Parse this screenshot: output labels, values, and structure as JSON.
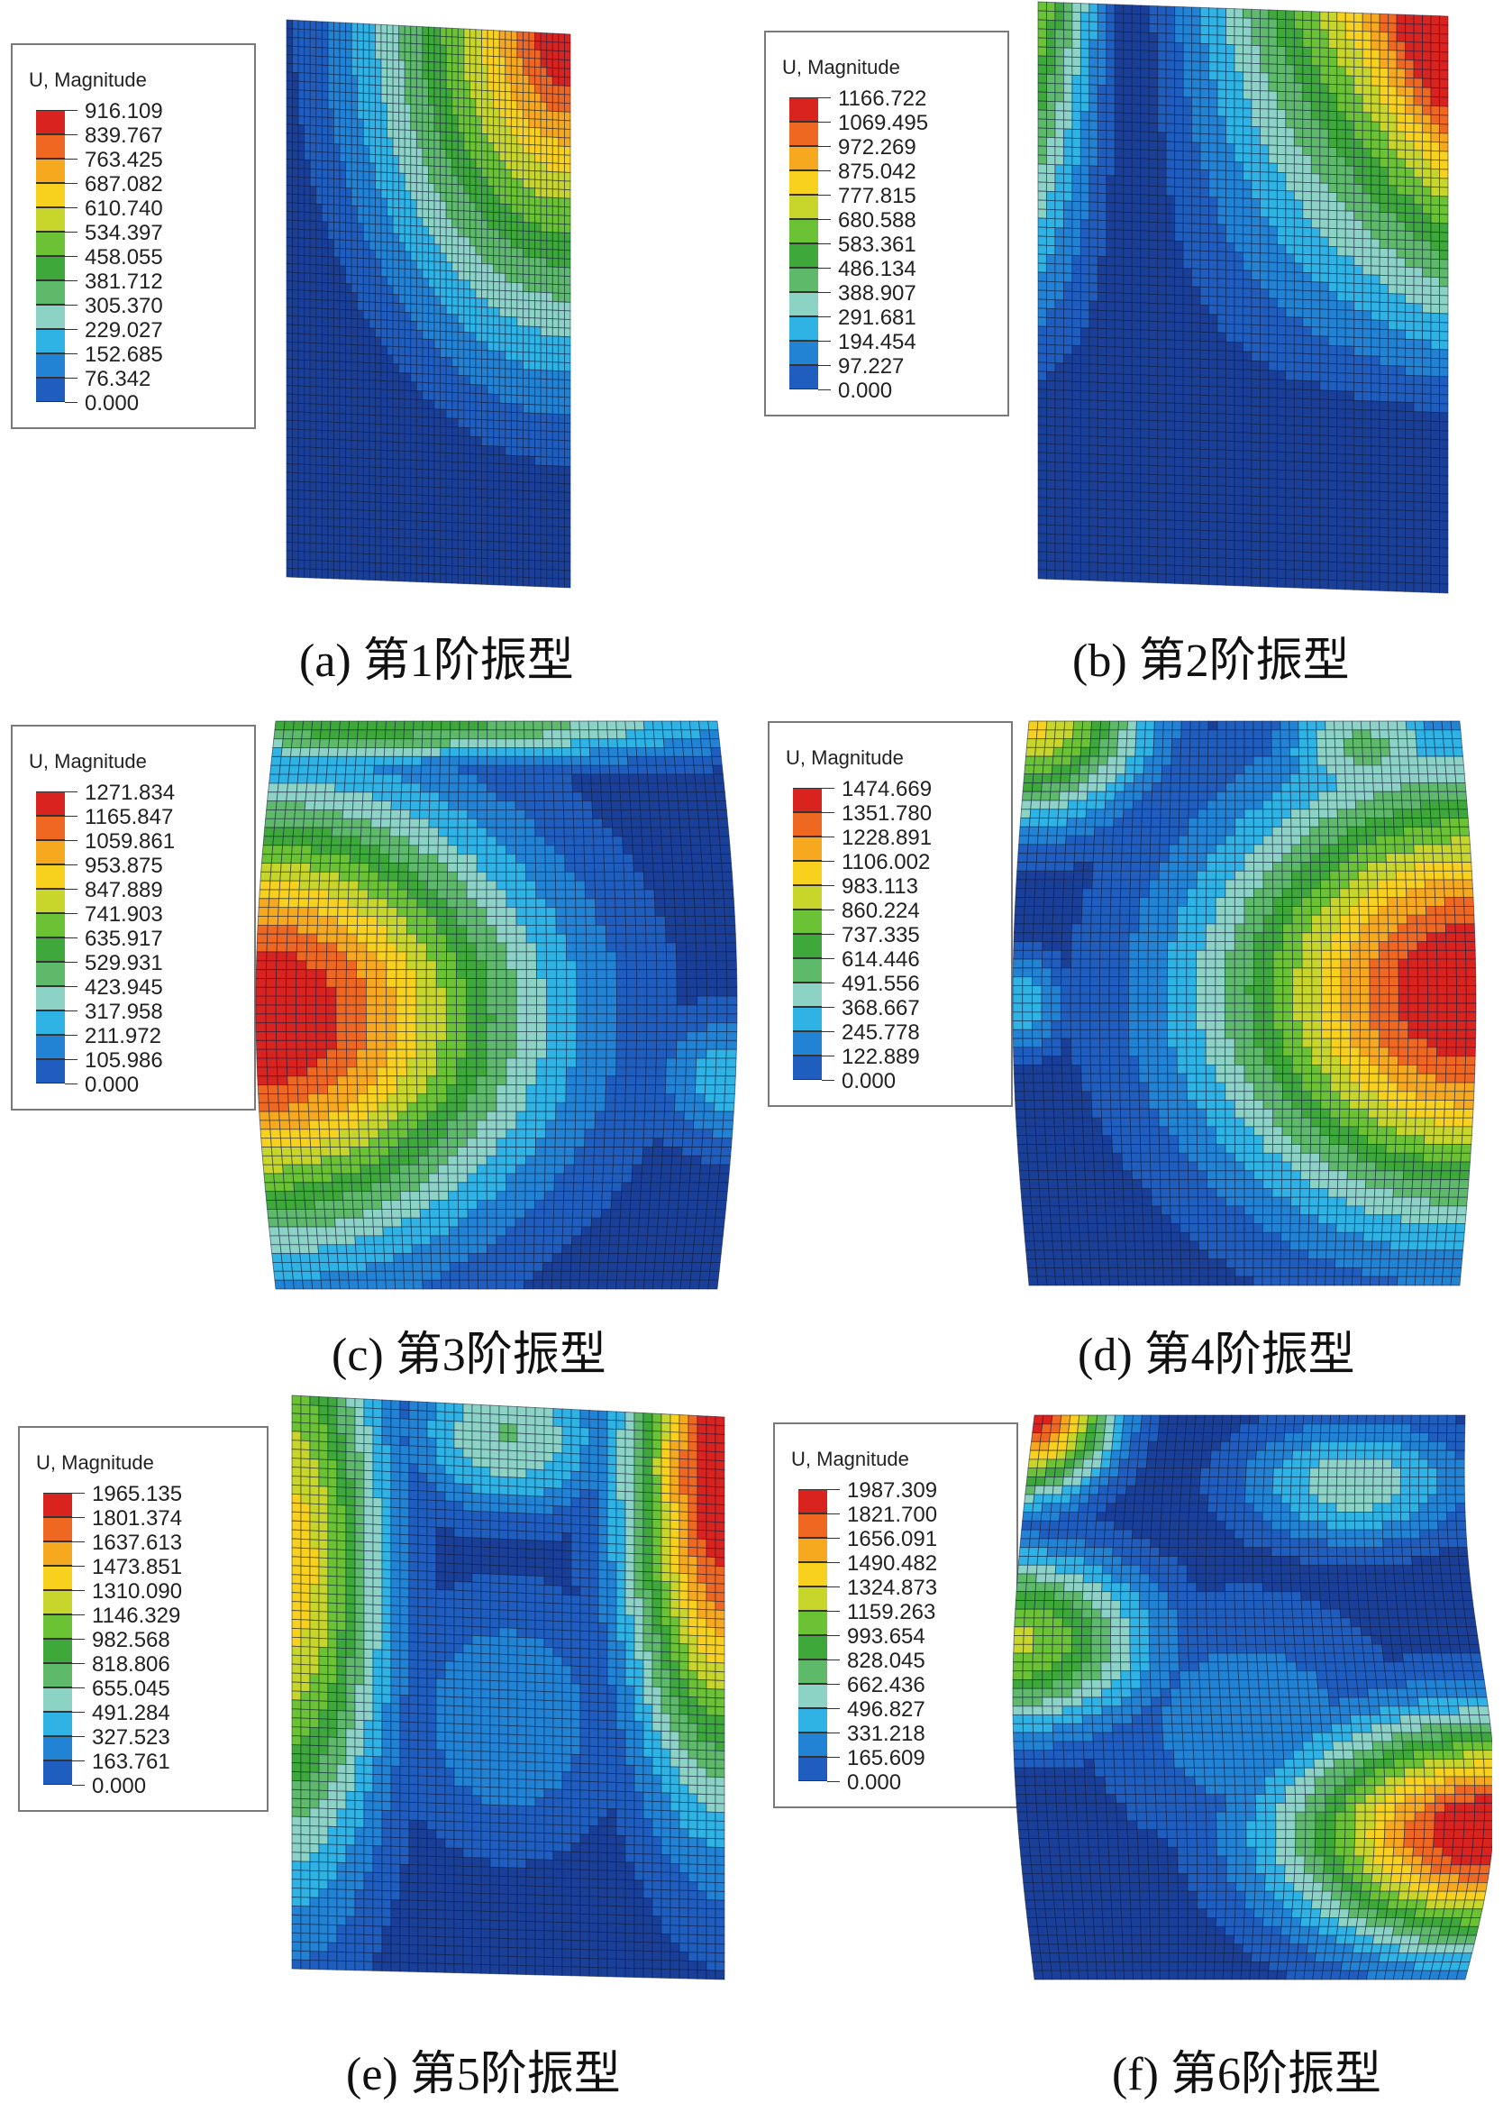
{
  "legend_title": "U, Magnitude",
  "colormap": [
    "#1a3f99",
    "#1f5ebf",
    "#2283d4",
    "#2fb3e4",
    "#8dd3c5",
    "#5fb96b",
    "#3fa83a",
    "#6bc234",
    "#c8d52a",
    "#f7d11d",
    "#f6a91f",
    "#ef6822",
    "#d9231f"
  ],
  "panels": [
    {
      "caption": "(a)  第1阶振型",
      "legend_values": [
        "916.109",
        "839.767",
        "763.425",
        "687.082",
        "610.740",
        "534.397",
        "458.055",
        "381.712",
        "305.370",
        "229.027",
        "152.685",
        "76.342",
        "0.000"
      ],
      "mode_shape": "1"
    },
    {
      "caption": "(b)  第2阶振型",
      "legend_values": [
        "1166.722",
        "1069.495",
        "972.269",
        "875.042",
        "777.815",
        "680.588",
        "583.361",
        "486.134",
        "388.907",
        "291.681",
        "194.454",
        "97.227",
        "0.000"
      ],
      "mode_shape": "2"
    },
    {
      "caption": "(c)  第3阶振型",
      "legend_values": [
        "1271.834",
        "1165.847",
        "1059.861",
        "953.875",
        "847.889",
        "741.903",
        "635.917",
        "529.931",
        "423.945",
        "317.958",
        "211.972",
        "105.986",
        "0.000"
      ],
      "mode_shape": "3"
    },
    {
      "caption": "(d)  第4阶振型",
      "legend_values": [
        "1474.669",
        "1351.780",
        "1228.891",
        "1106.002",
        "983.113",
        "860.224",
        "737.335",
        "614.446",
        "491.556",
        "368.667",
        "245.778",
        "122.889",
        "0.000"
      ],
      "mode_shape": "4"
    },
    {
      "caption": "(e)  第5阶振型",
      "legend_values": [
        "1965.135",
        "1801.374",
        "1637.613",
        "1473.851",
        "1310.090",
        "1146.329",
        "982.568",
        "818.806",
        "655.045",
        "491.284",
        "327.523",
        "163.761",
        "0.000"
      ],
      "mode_shape": "5"
    },
    {
      "caption": "(f)  第6阶振型",
      "legend_values": [
        "1987.309",
        "1821.700",
        "1656.091",
        "1490.482",
        "1324.873",
        "1159.263",
        "993.654",
        "828.045",
        "662.436",
        "496.827",
        "331.218",
        "165.609",
        "0.000"
      ],
      "mode_shape": "6"
    }
  ]
}
